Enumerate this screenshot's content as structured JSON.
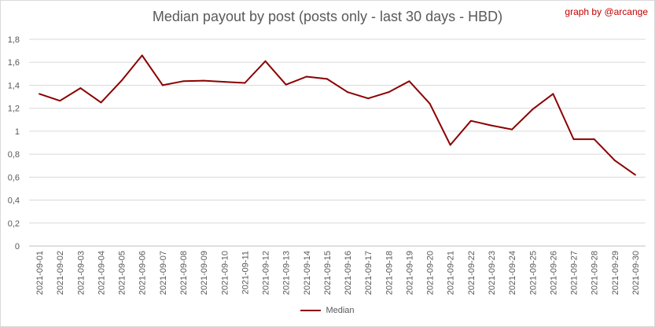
{
  "chart_data": {
    "type": "line",
    "title": "Median payout by post (posts only - last 30 days - HBD)",
    "credit": "graph by @arcange",
    "categories": [
      "2021-09-01",
      "2021-09-02",
      "2021-09-03",
      "2021-09-04",
      "2021-09-05",
      "2021-09-06",
      "2021-09-07",
      "2021-09-08",
      "2021-09-09",
      "2021-09-10",
      "2021-09-11",
      "2021-09-12",
      "2021-09-13",
      "2021-09-14",
      "2021-09-15",
      "2021-09-16",
      "2021-09-17",
      "2021-09-18",
      "2021-09-19",
      "2021-09-20",
      "2021-09-21",
      "2021-09-22",
      "2021-09-23",
      "2021-09-24",
      "2021-09-25",
      "2021-09-26",
      "2021-09-27",
      "2021-09-28",
      "2021-09-29",
      "2021-09-30"
    ],
    "series": [
      {
        "name": "Median",
        "color": "#8b0000",
        "values": [
          1.325,
          1.265,
          1.375,
          1.25,
          1.44,
          1.66,
          1.4,
          1.435,
          1.44,
          1.43,
          1.42,
          1.61,
          1.405,
          1.475,
          1.455,
          1.34,
          1.285,
          1.34,
          1.435,
          1.24,
          0.88,
          1.09,
          1.05,
          1.015,
          1.19,
          1.325,
          0.93,
          0.93,
          0.745,
          0.62
        ]
      }
    ],
    "ylim": [
      0,
      1.8
    ],
    "yticks": [
      "0",
      "0,2",
      "0,4",
      "0,6",
      "0,8",
      "1",
      "1,2",
      "1,4",
      "1,6",
      "1,8"
    ],
    "grid": true,
    "legend": "bottom"
  }
}
